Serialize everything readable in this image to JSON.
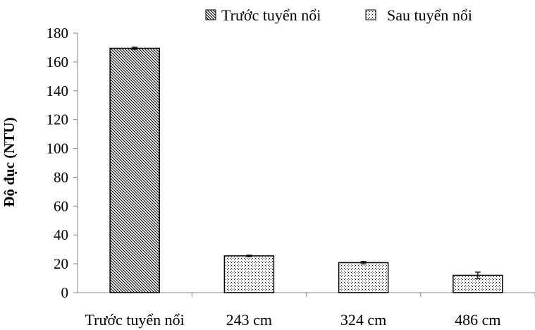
{
  "chart_data": {
    "type": "bar",
    "title": "",
    "xlabel": "",
    "ylabel": "Độ đục (NTU)",
    "ylim": [
      0,
      180
    ],
    "yticks": [
      0,
      20,
      40,
      60,
      80,
      100,
      120,
      140,
      160,
      180
    ],
    "grid": false,
    "legend_position": "top",
    "categories": [
      "Trước tuyển nổi",
      "243 cm",
      "324 cm",
      "486 cm"
    ],
    "legend": [
      {
        "name": "Trước tuyển nổi",
        "pattern": "diagonal-hatch"
      },
      {
        "name": "Sau tuyển nổi",
        "pattern": "dots"
      }
    ],
    "bars": [
      {
        "category": "Trước tuyển nổi",
        "series": "Trước tuyển nổi",
        "value": 169.5,
        "error": 0.7
      },
      {
        "category": "243 cm",
        "series": "Sau tuyển nổi",
        "value": 25.5,
        "error": 0.5
      },
      {
        "category": "324 cm",
        "series": "Sau tuyển nổi",
        "value": 20.8,
        "error": 0.9
      },
      {
        "category": "486 cm",
        "series": "Sau tuyển nổi",
        "value": 12.0,
        "error": 2.2
      }
    ],
    "colors": {
      "axis": "#868686",
      "bar_stroke": "#000000",
      "fill": "#ffffff"
    }
  }
}
